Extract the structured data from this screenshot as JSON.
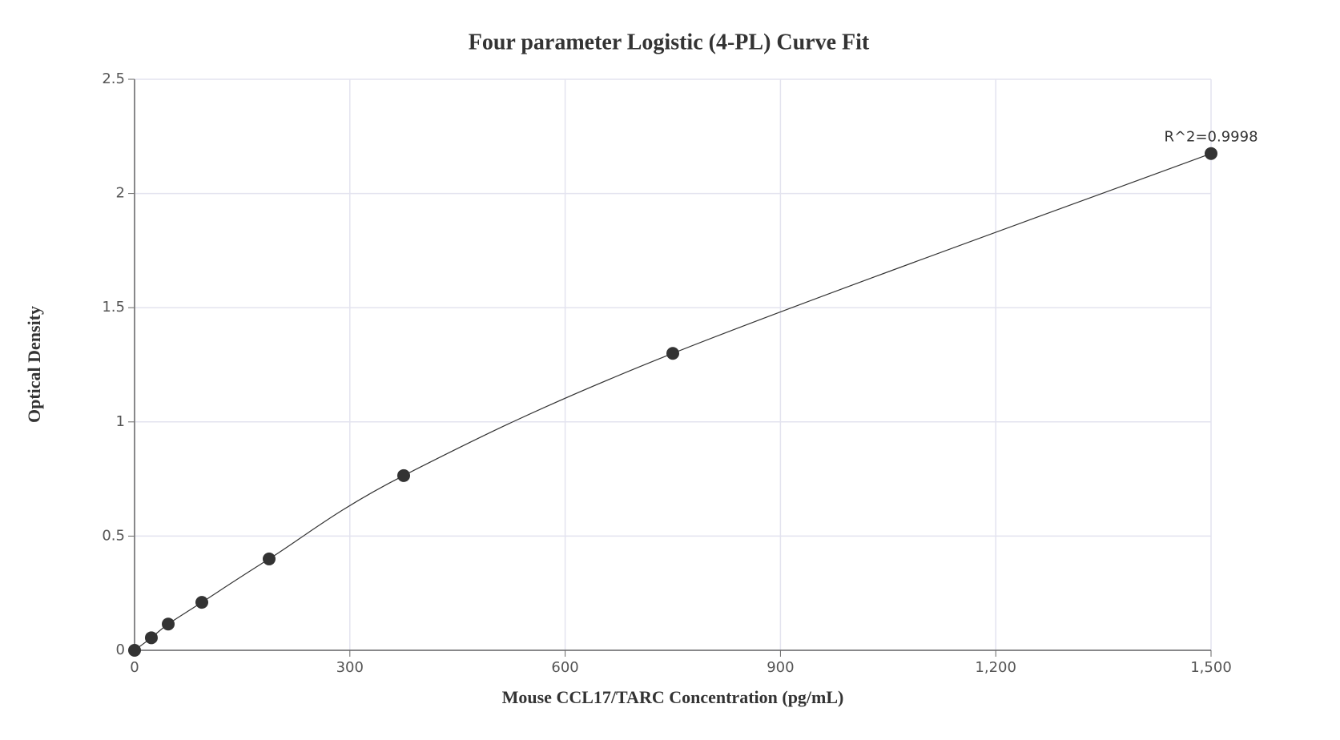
{
  "chart_data": {
    "type": "scatter",
    "title": "Four parameter Logistic (4-PL) Curve Fit",
    "x_label": "Mouse CCL17/TARC Concentration (pg/mL)",
    "y_label": "Optical Density",
    "annotation": "R^2=0.9998",
    "x": [
      0,
      23.4,
      46.9,
      93.75,
      187.5,
      375,
      750,
      1500
    ],
    "values": [
      0,
      0.055,
      0.115,
      0.21,
      0.4,
      0.765,
      1.3,
      2.175
    ],
    "color": "#333333",
    "xlim": [
      0,
      1500
    ],
    "ylim": [
      0,
      2.5
    ],
    "xticks": [
      0,
      300,
      600,
      900,
      {
        "value": 1200,
        "label": "1,200"
      },
      {
        "value": 1500,
        "label": "1,500"
      }
    ],
    "yticks": [
      0,
      0.5,
      1,
      1.5,
      2,
      2.5
    ],
    "grid": true
  }
}
